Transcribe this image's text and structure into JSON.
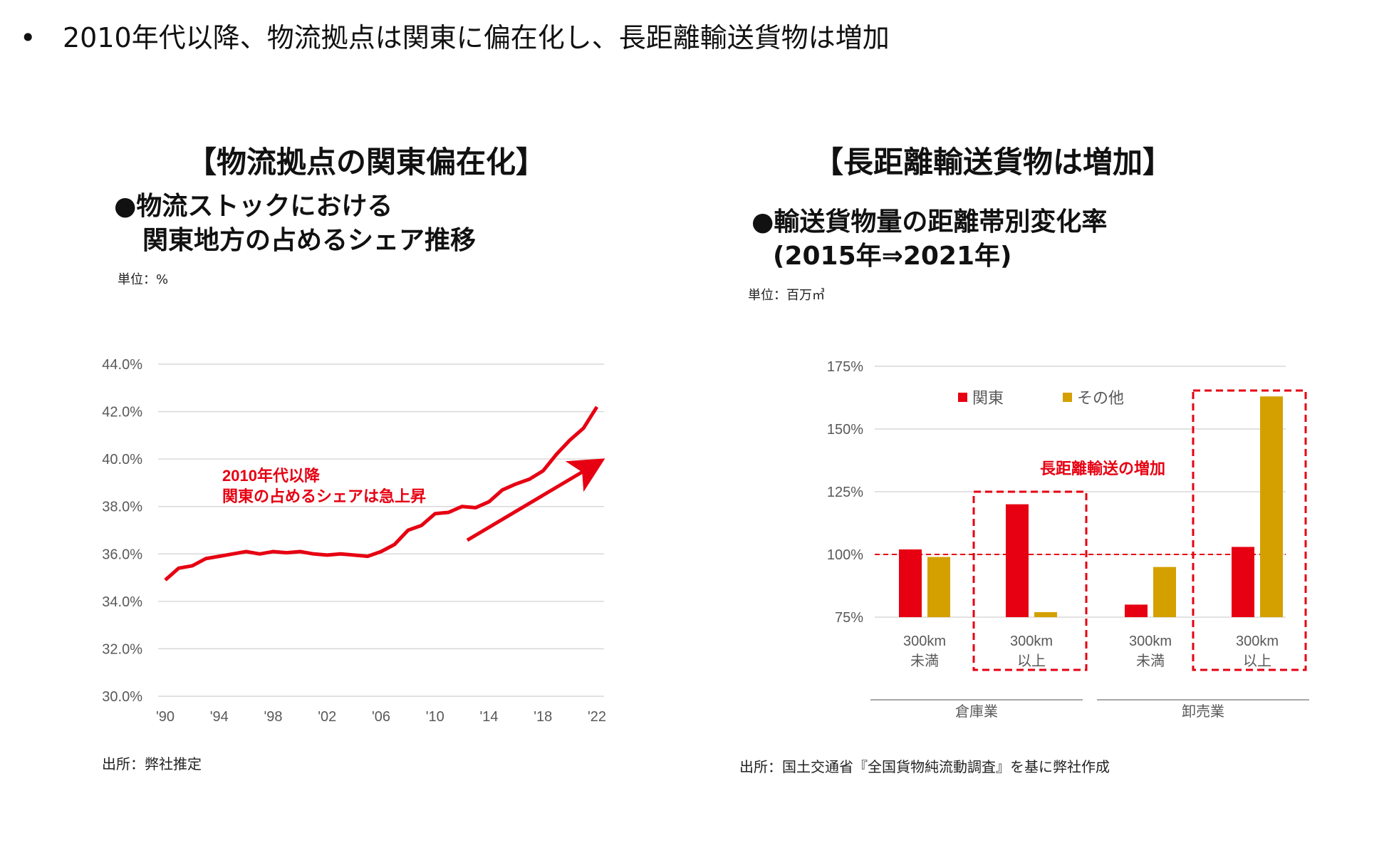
{
  "headline": {
    "bullet": "•",
    "text": "2010年代以降、物流拠点は関東に偏在化し、長距離輸送貨物は増加"
  },
  "left": {
    "section_title": "【物流拠点の関東偏在化】",
    "subtitle_line1": "●物流ストックにおける",
    "subtitle_line2": "関東地方の占めるシェア推移",
    "unit": "単位：%",
    "source": "出所：弊社推定",
    "annotation_line1": "2010年代以降",
    "annotation_line2": "関東の占めるシェアは急上昇"
  },
  "right": {
    "section_title": "【長距離輸送貨物は増加】",
    "subtitle_line1": "●輸送貨物量の距離帯別変化率",
    "subtitle_line2": "(2015年⇒2021年)",
    "unit": "単位：百万㎥",
    "source": "出所：国土交通省『全国貨物純流動調査』を基に弊社作成",
    "annotation": "長距離輸送の増加"
  },
  "colors": {
    "kanto": "#e60012",
    "other": "#d4a000",
    "accent": "#e60012",
    "axis_text": "#595959"
  },
  "chart_data": [
    {
      "type": "line",
      "ylim": [
        30,
        44
      ],
      "yticks": [
        "30.0%",
        "32.0%",
        "34.0%",
        "36.0%",
        "38.0%",
        "40.0%",
        "42.0%",
        "44.0%"
      ],
      "xticks": [
        "'90",
        "'94",
        "'98",
        "'02",
        "'06",
        "'10",
        "'14",
        "'18",
        "'22"
      ],
      "x_tick_years": [
        1990,
        1994,
        1998,
        2002,
        2006,
        2010,
        2014,
        2018,
        2022
      ],
      "grid": true,
      "series": [
        {
          "x": [
            1990,
            1991,
            1992,
            1993,
            1994,
            1995,
            1996,
            1997,
            1998,
            1999,
            2000,
            2001,
            2002,
            2003,
            2004,
            2005,
            2006,
            2007,
            2008,
            2009,
            2010,
            2011,
            2012,
            2013,
            2014,
            2015,
            2016,
            2017,
            2018,
            2019,
            2020,
            2021,
            2022
          ],
          "values": [
            34.9,
            35.4,
            35.5,
            35.8,
            35.9,
            36.0,
            36.1,
            36.0,
            36.1,
            36.05,
            36.1,
            36.0,
            35.95,
            36.0,
            35.95,
            35.9,
            36.1,
            36.4,
            37.0,
            37.2,
            37.7,
            37.75,
            38.0,
            37.95,
            38.2,
            38.7,
            38.95,
            39.15,
            39.5,
            40.2,
            40.8,
            41.3,
            42.2
          ]
        }
      ]
    },
    {
      "type": "bar",
      "ylim": [
        75,
        175
      ],
      "yticks": [
        "75%",
        "100%",
        "125%",
        "150%",
        "175%"
      ],
      "reference_line": 100,
      "categories": [
        "300km\n未満",
        "300km\n以上",
        "300km\n未満",
        "300km\n以上"
      ],
      "groups": [
        "倉庫業",
        "卸売業"
      ],
      "legend_position": "top",
      "series": [
        {
          "name": "関東",
          "values": [
            102,
            120,
            80,
            103
          ]
        },
        {
          "name": "その他",
          "values": [
            99,
            77,
            95,
            163
          ]
        }
      ],
      "highlighted_categories": [
        1,
        3
      ]
    }
  ]
}
